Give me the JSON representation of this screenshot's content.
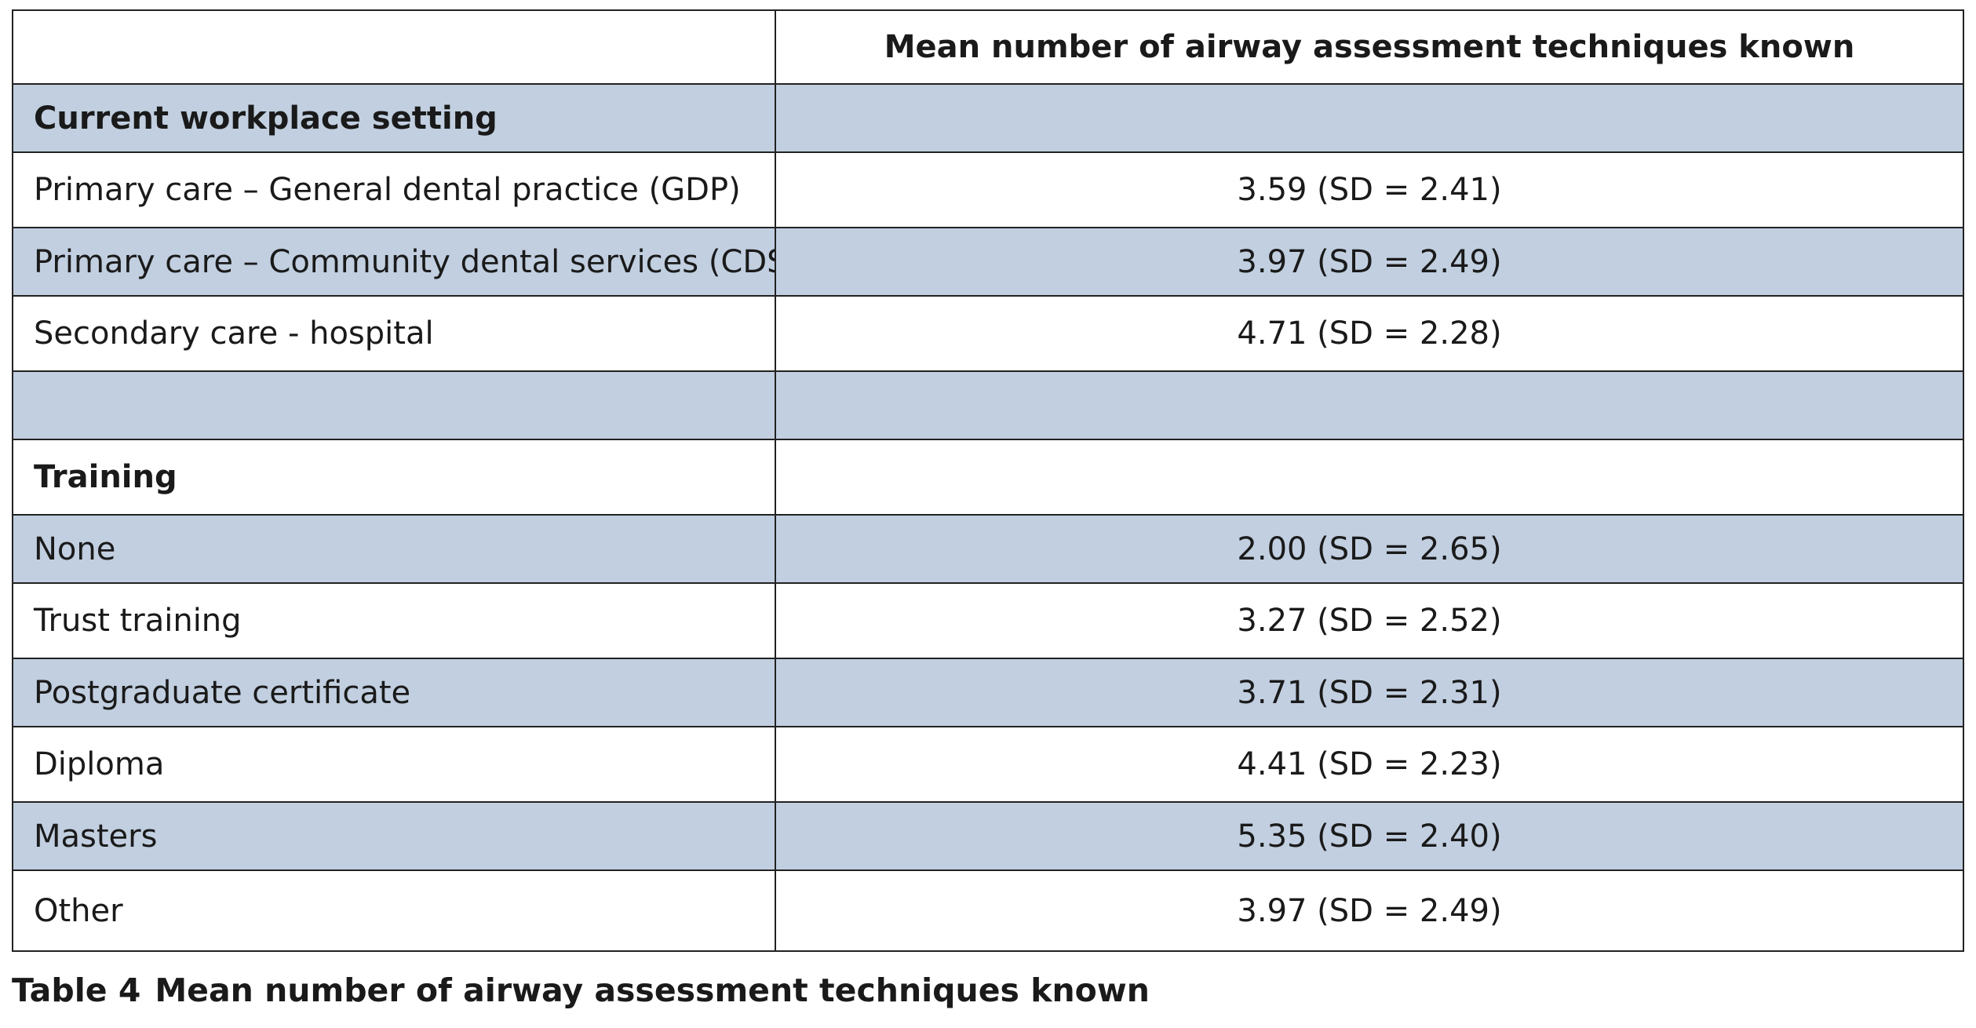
{
  "table": {
    "header": {
      "left": "",
      "right": "Mean number of airway assessment techniques known"
    },
    "rows": [
      {
        "kind": "section",
        "label": "Current workplace setting",
        "value": "",
        "shaded": true
      },
      {
        "kind": "item",
        "label": "Primary care – General dental practice (GDP)",
        "value": "3.59 (SD = 2.41)",
        "shaded": false
      },
      {
        "kind": "item",
        "label": "Primary care – Community dental services (CDS)",
        "value": "3.97 (SD = 2.49)",
        "shaded": true
      },
      {
        "kind": "item",
        "label": "Secondary care - hospital",
        "value": "4.71 (SD = 2.28)",
        "shaded": false
      },
      {
        "kind": "spacer",
        "label": "",
        "value": "",
        "shaded": true
      },
      {
        "kind": "section",
        "label": "Training",
        "value": "",
        "shaded": false
      },
      {
        "kind": "item",
        "label": "None",
        "value": "2.00 (SD = 2.65)",
        "shaded": true
      },
      {
        "kind": "item",
        "label": "Trust training",
        "value": "3.27 (SD = 2.52)",
        "shaded": false
      },
      {
        "kind": "item",
        "label": "Postgraduate certificate",
        "value": "3.71 (SD = 2.31)",
        "shaded": true
      },
      {
        "kind": "item",
        "label": "Diploma",
        "value": "4.41 (SD = 2.23)",
        "shaded": false
      },
      {
        "kind": "item",
        "label": "Masters",
        "value": "5.35 (SD = 2.40)",
        "shaded": true
      },
      {
        "kind": "item",
        "label": "Other",
        "value": "3.97 (SD = 2.49)",
        "shaded": false
      }
    ]
  },
  "caption": {
    "number": "Table 4",
    "text": "Mean number of airway assessment techniques known"
  },
  "colors": {
    "shaded_row": "#c1cfe0",
    "border": "#222222",
    "text": "#1a1a1a"
  }
}
